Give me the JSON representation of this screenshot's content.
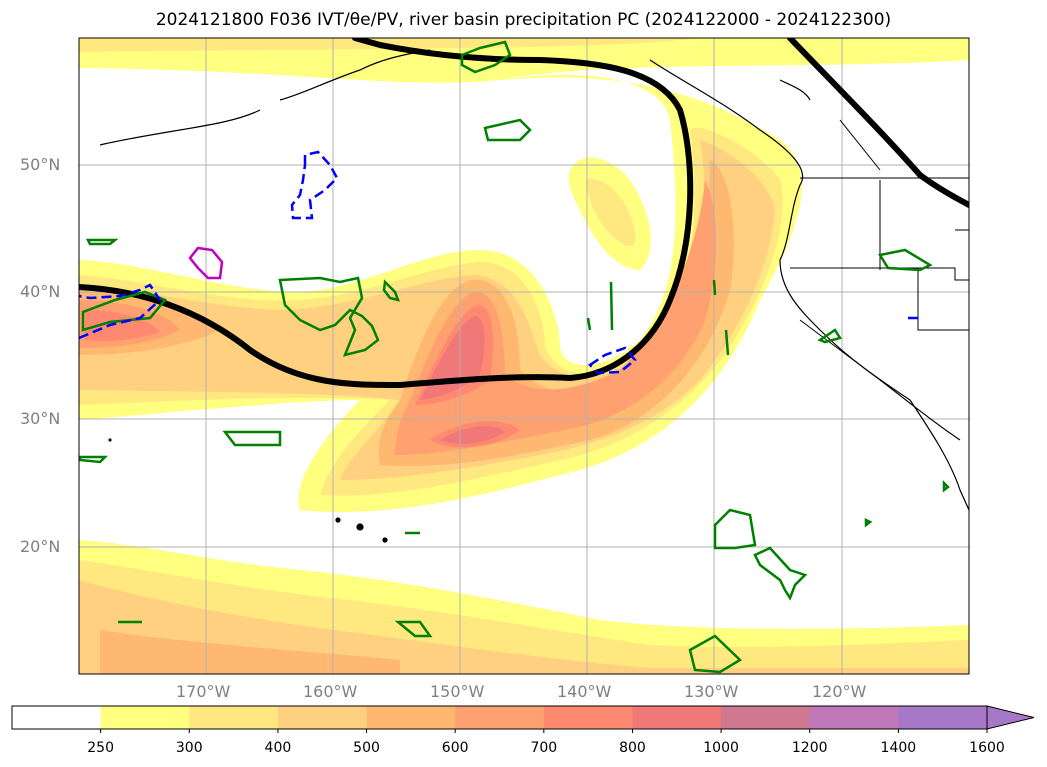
{
  "title": "2024121800 F036 IVT/θe/PV, river basin precipitation PC (2024122000 - 2024122300)",
  "map": {
    "lat_labels": [
      "50°N",
      "40°N",
      "30°N",
      "20°N"
    ],
    "lon_labels": [
      "170°W",
      "160°W",
      "150°W",
      "140°W",
      "130°W",
      "120°W"
    ]
  },
  "colorbar": {
    "ticks": [
      "250",
      "300",
      "400",
      "500",
      "600",
      "700",
      "800",
      "1000",
      "1200",
      "1400",
      "1600"
    ],
    "colors": [
      "#ffffff",
      "#ffff80",
      "#ffe880",
      "#ffd080",
      "#ffb870",
      "#ffa070",
      "#ff8870",
      "#f07878",
      "#d07890",
      "#c078b8",
      "#a878c8"
    ],
    "extend": "max"
  }
}
